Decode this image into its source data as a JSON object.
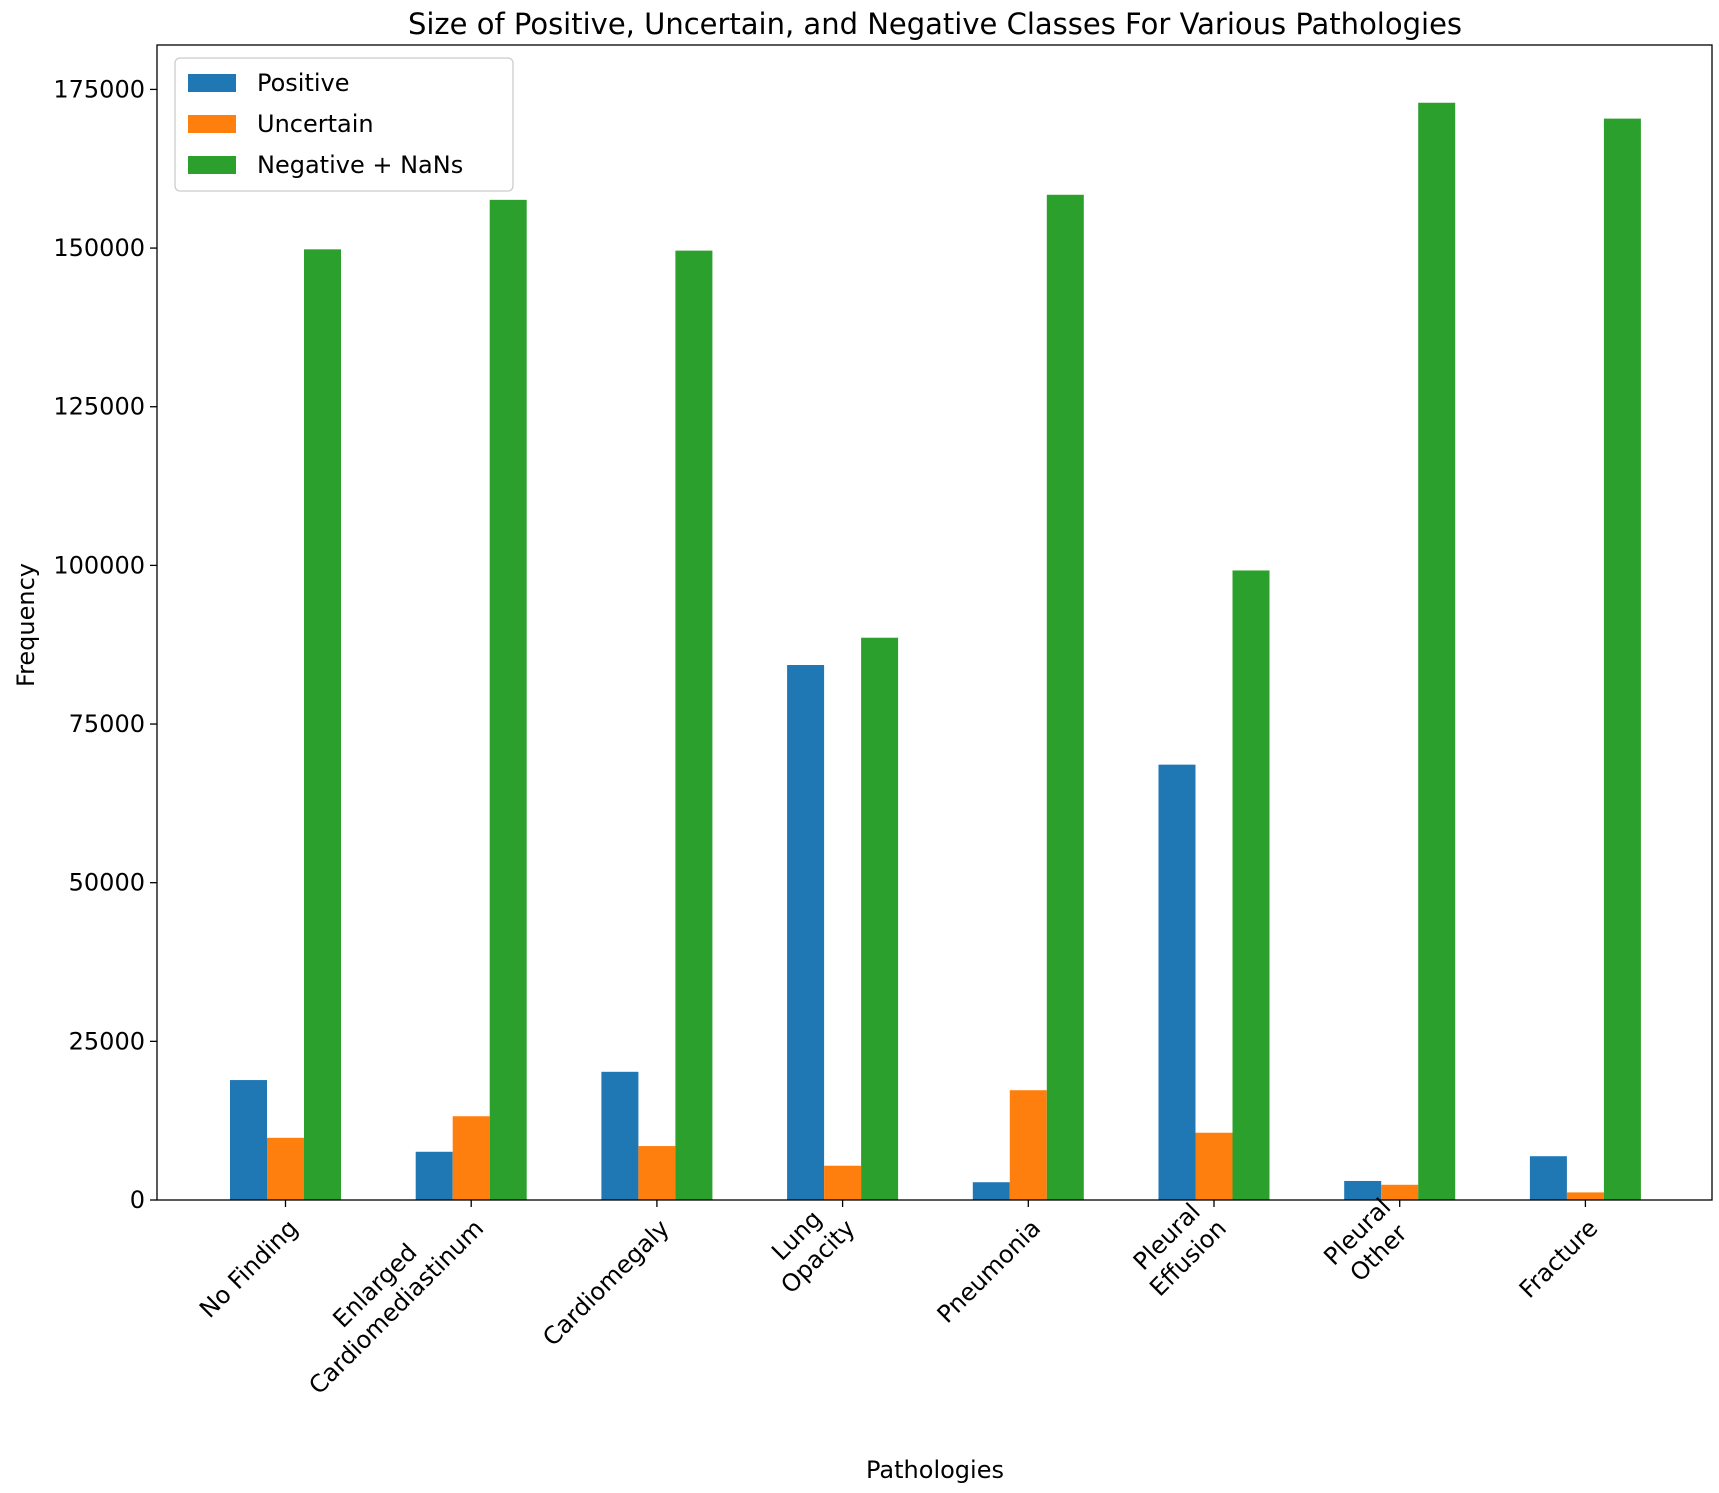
{
  "chart_data": {
    "type": "bar",
    "title": "Size of Positive, Uncertain, and Negative Classes For Various Pathologies",
    "xlabel": "Pathologies",
    "ylabel": "Frequency",
    "categories": [
      [
        "No Finding"
      ],
      [
        "Enlarged",
        "Cardiomediastinum"
      ],
      [
        "Cardiomegaly"
      ],
      [
        "Lung",
        "Opacity"
      ],
      [
        "Pneumonia"
      ],
      [
        "Pleural",
        "Effusion"
      ],
      [
        "Pleural",
        "Other"
      ],
      [
        "Fracture"
      ]
    ],
    "series": [
      {
        "name": "Positive",
        "color": "#1f77b4",
        "values": [
          18900,
          7600,
          20200,
          84300,
          2800,
          68600,
          3000,
          6900
        ]
      },
      {
        "name": "Uncertain",
        "color": "#ff7f0e",
        "values": [
          9800,
          13200,
          8500,
          5400,
          17300,
          10600,
          2400,
          1200
        ]
      },
      {
        "name": "Negative + NaNs",
        "color": "#2ca02c",
        "values": [
          149800,
          157600,
          149600,
          88600,
          158400,
          99200,
          172900,
          170400
        ]
      }
    ],
    "ylim": [
      0,
      182000
    ],
    "yticks": [
      0,
      25000,
      50000,
      75000,
      100000,
      125000,
      150000,
      175000
    ],
    "grid": false,
    "legend_position": "top-left"
  }
}
